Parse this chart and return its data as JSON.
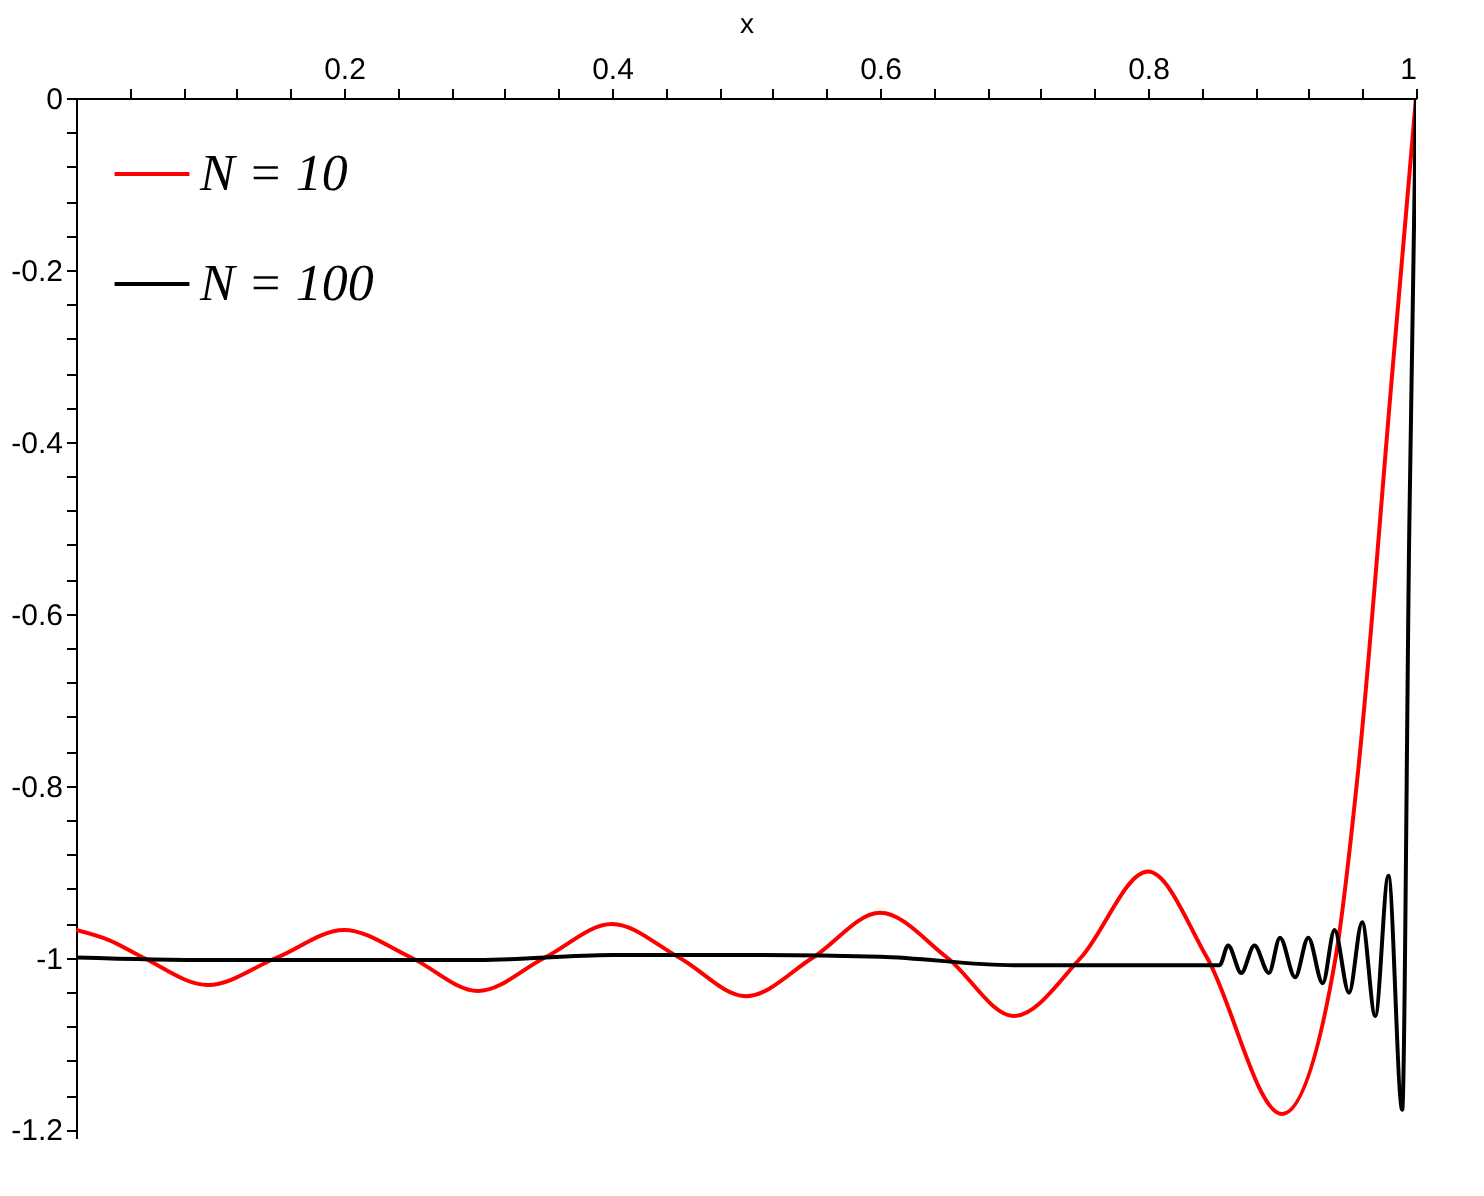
{
  "chart_data": {
    "type": "line",
    "xlabel": "x",
    "xlim": [
      0,
      1
    ],
    "ylim": [
      -1.21,
      0
    ],
    "xticks": [
      {
        "value": 0.04,
        "label": null
      },
      {
        "value": 0.08,
        "label": null
      },
      {
        "value": 0.12,
        "label": null
      },
      {
        "value": 0.16,
        "label": null
      },
      0.2,
      {
        "value": 0.24,
        "label": null
      },
      {
        "value": 0.28,
        "label": null
      },
      {
        "value": 0.32,
        "label": null
      },
      {
        "value": 0.36,
        "label": null
      },
      0.4,
      {
        "value": 0.44,
        "label": null
      },
      {
        "value": 0.48,
        "label": null
      },
      {
        "value": 0.52,
        "label": null
      },
      {
        "value": 0.56,
        "label": null
      },
      0.6,
      {
        "value": 0.64,
        "label": null
      },
      {
        "value": 0.68,
        "label": null
      },
      {
        "value": 0.72,
        "label": null
      },
      {
        "value": 0.76,
        "label": null
      },
      0.8,
      {
        "value": 0.84,
        "label": null
      },
      {
        "value": 0.88,
        "label": null
      },
      {
        "value": 0.92,
        "label": null
      },
      {
        "value": 0.96,
        "label": null
      },
      1
    ],
    "yticks": [
      0,
      {
        "value": -0.04,
        "label": null
      },
      {
        "value": -0.08,
        "label": null
      },
      {
        "value": -0.12,
        "label": null
      },
      {
        "value": -0.16,
        "label": null
      },
      -0.2,
      {
        "value": -0.24,
        "label": null
      },
      {
        "value": -0.28,
        "label": null
      },
      {
        "value": -0.32,
        "label": null
      },
      {
        "value": -0.36,
        "label": null
      },
      -0.4,
      {
        "value": -0.44,
        "label": null
      },
      {
        "value": -0.48,
        "label": null
      },
      {
        "value": -0.52,
        "label": null
      },
      {
        "value": -0.56,
        "label": null
      },
      -0.6,
      {
        "value": -0.64,
        "label": null
      },
      {
        "value": -0.68,
        "label": null
      },
      {
        "value": -0.72,
        "label": null
      },
      {
        "value": -0.76,
        "label": null
      },
      -0.8,
      {
        "value": -0.84,
        "label": null
      },
      {
        "value": -0.88,
        "label": null
      },
      {
        "value": -0.92,
        "label": null
      },
      {
        "value": -0.96,
        "label": null
      },
      -1,
      {
        "value": -1.04,
        "label": null
      },
      {
        "value": -1.08,
        "label": null
      },
      {
        "value": -1.12,
        "label": null
      },
      {
        "value": -1.16,
        "label": null
      },
      -1.2
    ],
    "grid": false,
    "legend": "top left",
    "marker": "none",
    "line_style": "solid",
    "series": [
      {
        "name": "N = 10",
        "color": "#ff0000",
        "x": [
          0,
          0.025,
          0.05,
          0.0985,
          0.15,
          0.2,
          0.25,
          0.3,
          0.35,
          0.4,
          0.45,
          0.5,
          0.55,
          0.6,
          0.65,
          0.7,
          0.75,
          0.8,
          0.844,
          0.9,
          0.94,
          0.957,
          0.982,
          1
        ],
        "values": [
          -0.968,
          -0.98,
          -1.0,
          -1.032,
          -1.0,
          -0.968,
          -1.0,
          -1.039,
          -1.0,
          -0.961,
          -1.0,
          -1.045,
          -1.0,
          -0.948,
          -1.0,
          -1.068,
          -1.0,
          -0.9,
          -1.0,
          -1.182,
          -1.0,
          -0.78,
          -0.325,
          0
        ]
      },
      {
        "name": "N = 100",
        "color": "#000000",
        "x": [
          0,
          0.1,
          0.2,
          0.3,
          0.4,
          0.5,
          0.6,
          0.7,
          0.8,
          0.8534,
          0.8598,
          0.8696,
          0.8794,
          0.8902,
          0.8985,
          0.9098,
          0.9196,
          0.9304,
          0.9392,
          0.95,
          0.9598,
          0.9696,
          0.9794,
          0.9897,
          0.995,
          1
        ],
        "values": [
          -1.0,
          -1.003,
          -1.003,
          -1.003,
          -0.997,
          -0.997,
          -0.999,
          -1.009,
          -1.009,
          -1.009,
          -0.986,
          -1.018,
          -0.986,
          -1.018,
          -0.977,
          -1.023,
          -0.977,
          -1.03,
          -0.968,
          -1.041,
          -0.959,
          -1.068,
          -0.905,
          -1.177,
          -0.5,
          0
        ]
      }
    ]
  }
}
